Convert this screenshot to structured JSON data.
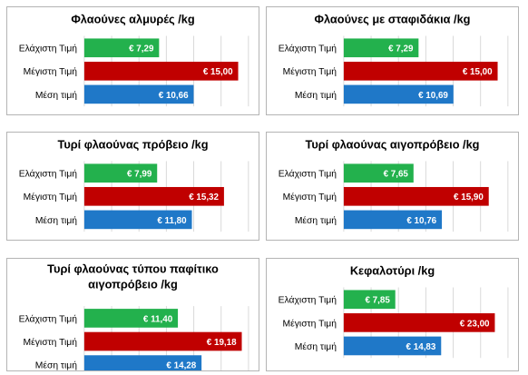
{
  "chart_data": [
    {
      "type": "bar",
      "title": "Φλαούνες αλμυρές /kg",
      "categories": [
        "Ελάχιστη Τιμή",
        "Μέγιστη Τιμή",
        "Μέση τιμή"
      ],
      "values": [
        7.29,
        15.0,
        10.66
      ],
      "labels": [
        "€ 7,29",
        "€ 15,00",
        "€ 10,66"
      ],
      "colors": [
        "#23b14d",
        "#c00000",
        "#1f78c8"
      ],
      "xlim": [
        0,
        16
      ],
      "grid": true,
      "orientation": "horizontal"
    },
    {
      "type": "bar",
      "title": "Φλαούνες με σταφιδάκια /kg",
      "categories": [
        "Ελάχιστη Τιμή",
        "Μέγιστη Τιμή",
        "Μέση τιμή"
      ],
      "values": [
        7.29,
        15.0,
        10.69
      ],
      "labels": [
        "€ 7,29",
        "€ 15,00",
        "€ 10,69"
      ],
      "colors": [
        "#23b14d",
        "#c00000",
        "#1f78c8"
      ],
      "xlim": [
        0,
        16
      ],
      "grid": true,
      "orientation": "horizontal"
    },
    {
      "type": "bar",
      "title": "Τυρί φλαούνας πρόβειο /kg",
      "categories": [
        "Ελάχιστη Τιμή",
        "Μέγιστη Τιμή",
        "Μέση τιμή"
      ],
      "values": [
        7.99,
        15.32,
        11.8
      ],
      "labels": [
        "€ 7,99",
        "€ 15,32",
        "€ 11,80"
      ],
      "colors": [
        "#23b14d",
        "#c00000",
        "#1f78c8"
      ],
      "xlim": [
        0,
        18
      ],
      "grid": true,
      "orientation": "horizontal"
    },
    {
      "type": "bar",
      "title": "Τυρί φλαούνας αιγοπρόβειο /kg",
      "categories": [
        "Ελάχιστη Τιμή",
        "Μέγιστη Τιμή",
        "Μέση τιμή"
      ],
      "values": [
        7.65,
        15.9,
        10.76
      ],
      "labels": [
        "€ 7,65",
        "€ 15,90",
        "€ 10,76"
      ],
      "colors": [
        "#23b14d",
        "#c00000",
        "#1f78c8"
      ],
      "xlim": [
        0,
        18
      ],
      "grid": true,
      "orientation": "horizontal"
    },
    {
      "type": "bar",
      "title": "Τυρί φλαούνας τύπου παφίτικο αιγοπρόβειο /kg",
      "title_lines": [
        "Τυρί φλαούνας τύπου παφίτικο",
        "αιγοπρόβειο /kg"
      ],
      "categories": [
        "Ελάχιστη Τιμή",
        "Μέγιστη Τιμή",
        "Μέση τιμή"
      ],
      "values": [
        11.4,
        19.18,
        14.28
      ],
      "labels": [
        "€ 11,40",
        "€ 19,18",
        "€ 14,28"
      ],
      "colors": [
        "#23b14d",
        "#c00000",
        "#1f78c8"
      ],
      "xlim": [
        0,
        20
      ],
      "grid": true,
      "orientation": "horizontal"
    },
    {
      "type": "bar",
      "title": "Κεφαλοτύρι /kg",
      "categories": [
        "Ελάχιστη Τιμή",
        "Μέγιστη Τιμή",
        "Μέση τιμή"
      ],
      "values": [
        7.85,
        23.0,
        14.83
      ],
      "labels": [
        "€ 7,85",
        "€ 23,00",
        "€ 14,83"
      ],
      "colors": [
        "#23b14d",
        "#c00000",
        "#1f78c8"
      ],
      "xlim": [
        0,
        25
      ],
      "grid": true,
      "orientation": "horizontal"
    }
  ]
}
